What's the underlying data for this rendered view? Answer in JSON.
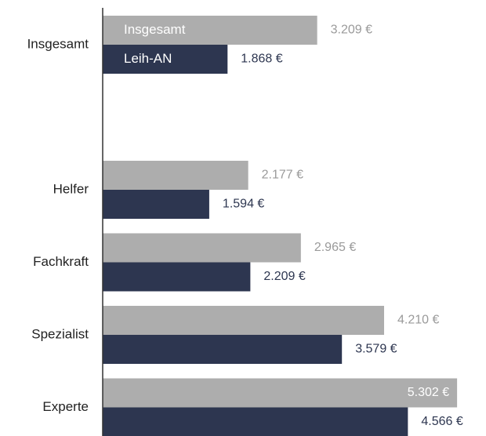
{
  "chart_data": {
    "type": "bar",
    "orientation": "horizontal",
    "categories": [
      "Insgesamt",
      null,
      "Helfer",
      "Fachkraft",
      "Spezialist",
      "Experte"
    ],
    "series": [
      {
        "name": "Insgesamt",
        "color": "#adadad",
        "values": [
          3209,
          null,
          2177,
          2965,
          4210,
          5302
        ],
        "value_labels": [
          "3.209 €",
          null,
          "2.177 €",
          "2.965 €",
          "4.210 €",
          "5.302 €"
        ]
      },
      {
        "name": "Leih-AN",
        "color": "#2d3650",
        "values": [
          1868,
          null,
          1594,
          2209,
          3579,
          4566
        ],
        "value_labels": [
          "1.868 €",
          null,
          "1.594 €",
          "2.209 €",
          "3.579 €",
          "4.566 €"
        ]
      }
    ],
    "xlim": [
      0,
      5500
    ]
  }
}
